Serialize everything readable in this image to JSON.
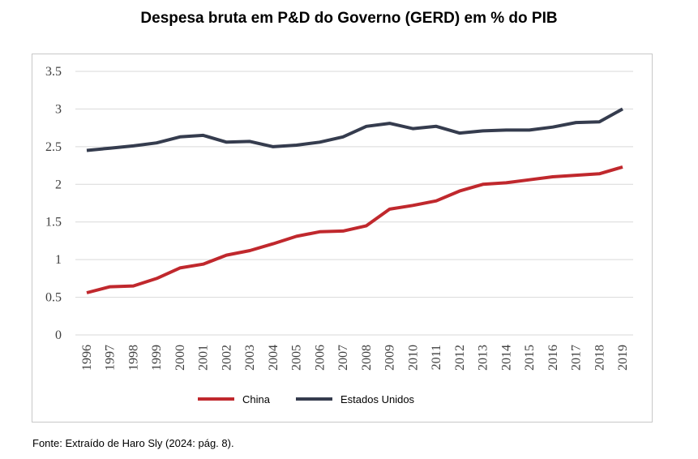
{
  "chart_data": {
    "type": "line",
    "title": "Despesa bruta em P&D do Governo (GERD) em % do PIB",
    "xlabel": "",
    "ylabel": "",
    "x": [
      "1996",
      "1997",
      "1998",
      "1999",
      "2000",
      "2001",
      "2002",
      "2003",
      "2004",
      "2005",
      "2006",
      "2007",
      "2008",
      "2009",
      "2010",
      "2011",
      "2012",
      "2013",
      "2014",
      "2015",
      "2016",
      "2017",
      "2018",
      "2019"
    ],
    "ylim": [
      0,
      3.5
    ],
    "yticks": [
      "0",
      "0.5",
      "1",
      "1.5",
      "2",
      "2.5",
      "3",
      "3.5"
    ],
    "grid": true,
    "legend_position": "bottom",
    "series": [
      {
        "name": "China",
        "color": "#c0282d",
        "values": [
          0.56,
          0.64,
          0.65,
          0.75,
          0.89,
          0.94,
          1.06,
          1.12,
          1.21,
          1.31,
          1.37,
          1.38,
          1.45,
          1.67,
          1.72,
          1.78,
          1.91,
          2.0,
          2.02,
          2.06,
          2.1,
          2.12,
          2.14,
          2.23
        ]
      },
      {
        "name": "Estados Unidos",
        "color": "#353c4e",
        "values": [
          2.45,
          2.48,
          2.51,
          2.55,
          2.63,
          2.65,
          2.56,
          2.57,
          2.5,
          2.52,
          2.56,
          2.63,
          2.77,
          2.81,
          2.74,
          2.77,
          2.68,
          2.71,
          2.72,
          2.72,
          2.76,
          2.82,
          2.83,
          3.0
        ]
      }
    ]
  },
  "source": "Fonte: Extraído de Haro Sly (2024: pág. 8)."
}
